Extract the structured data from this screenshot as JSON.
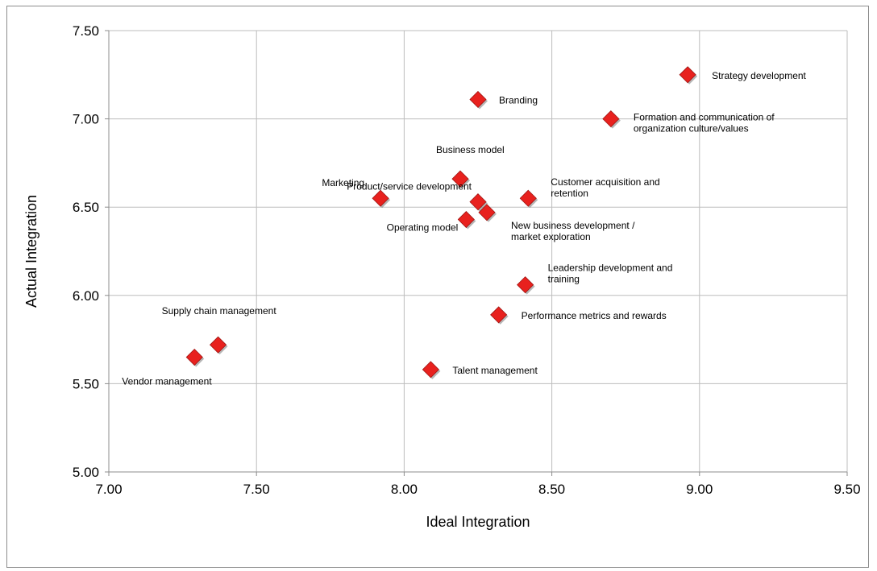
{
  "chart_data": {
    "type": "scatter",
    "xlabel": "Ideal Integration",
    "ylabel": "Actual Integration",
    "xlim": [
      7.0,
      9.5
    ],
    "ylim": [
      5.0,
      7.5
    ],
    "xticks": [
      "7.00",
      "7.50",
      "8.00",
      "8.50",
      "9.00",
      "9.50"
    ],
    "yticks": [
      "5.00",
      "5.50",
      "6.00",
      "6.50",
      "7.00",
      "7.50"
    ],
    "grid": true,
    "marker_color": "#e8211e",
    "points": [
      {
        "label": [
          "Strategy development"
        ],
        "x": 8.96,
        "y": 7.25
      },
      {
        "label": [
          "Branding"
        ],
        "x": 8.25,
        "y": 7.11
      },
      {
        "label": [
          "Formation and communication of",
          "organization culture/values"
        ],
        "x": 8.7,
        "y": 7.0
      },
      {
        "label": [
          "Business model"
        ],
        "x": 8.19,
        "y": 6.66
      },
      {
        "label": [
          "Marketing"
        ],
        "x": 7.92,
        "y": 6.55
      },
      {
        "label": [
          "Product/service development"
        ],
        "x": 8.25,
        "y": 6.53
      },
      {
        "label": [
          "Customer acquisition and",
          "retention"
        ],
        "x": 8.42,
        "y": 6.55
      },
      {
        "label": [
          "Operating model"
        ],
        "x": 8.21,
        "y": 6.43
      },
      {
        "label": [
          "New business development /",
          "market exploration"
        ],
        "x": 8.28,
        "y": 6.47
      },
      {
        "label": [
          "Leadership development and",
          "training"
        ],
        "x": 8.41,
        "y": 6.06
      },
      {
        "label": [
          "Performance metrics and rewards"
        ],
        "x": 8.32,
        "y": 5.89
      },
      {
        "label": [
          "Supply chain management"
        ],
        "x": 7.37,
        "y": 5.72
      },
      {
        "label": [
          "Vendor management"
        ],
        "x": 7.29,
        "y": 5.65
      },
      {
        "label": [
          "Talent management"
        ],
        "x": 8.09,
        "y": 5.58
      }
    ]
  }
}
